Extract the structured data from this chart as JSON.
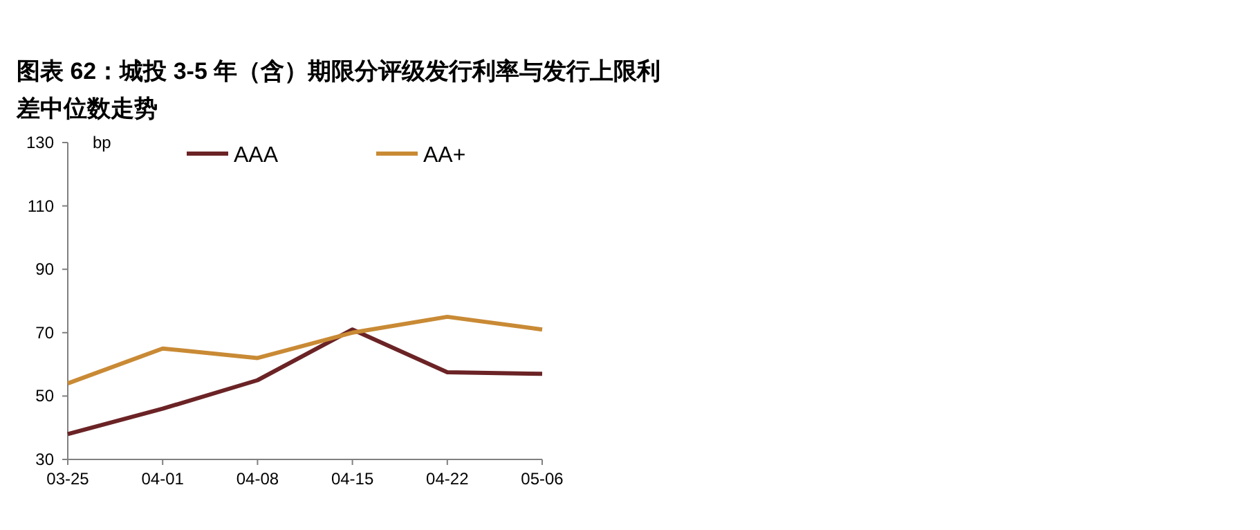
{
  "chart_data": {
    "type": "line",
    "title": "图表 62：城投 3-5 年（含）期限分评级发行利率与发行上限利差中位数走势",
    "ylabel": "bp",
    "categories": [
      "03-25",
      "04-01",
      "04-08",
      "04-15",
      "04-22",
      "05-06"
    ],
    "series": [
      {
        "name": "AAA",
        "color": "#6b2325",
        "values": [
          38,
          46,
          55,
          71,
          57.5,
          57
        ]
      },
      {
        "name": "AA+",
        "color": "#c98a35",
        "values": [
          54,
          65,
          62,
          70,
          75,
          71
        ]
      }
    ],
    "ylim": [
      30,
      130
    ],
    "yticks": [
      30,
      50,
      70,
      90,
      110,
      130
    ],
    "grid": false,
    "legend": "top",
    "marker": "none",
    "line_style": "solid"
  }
}
